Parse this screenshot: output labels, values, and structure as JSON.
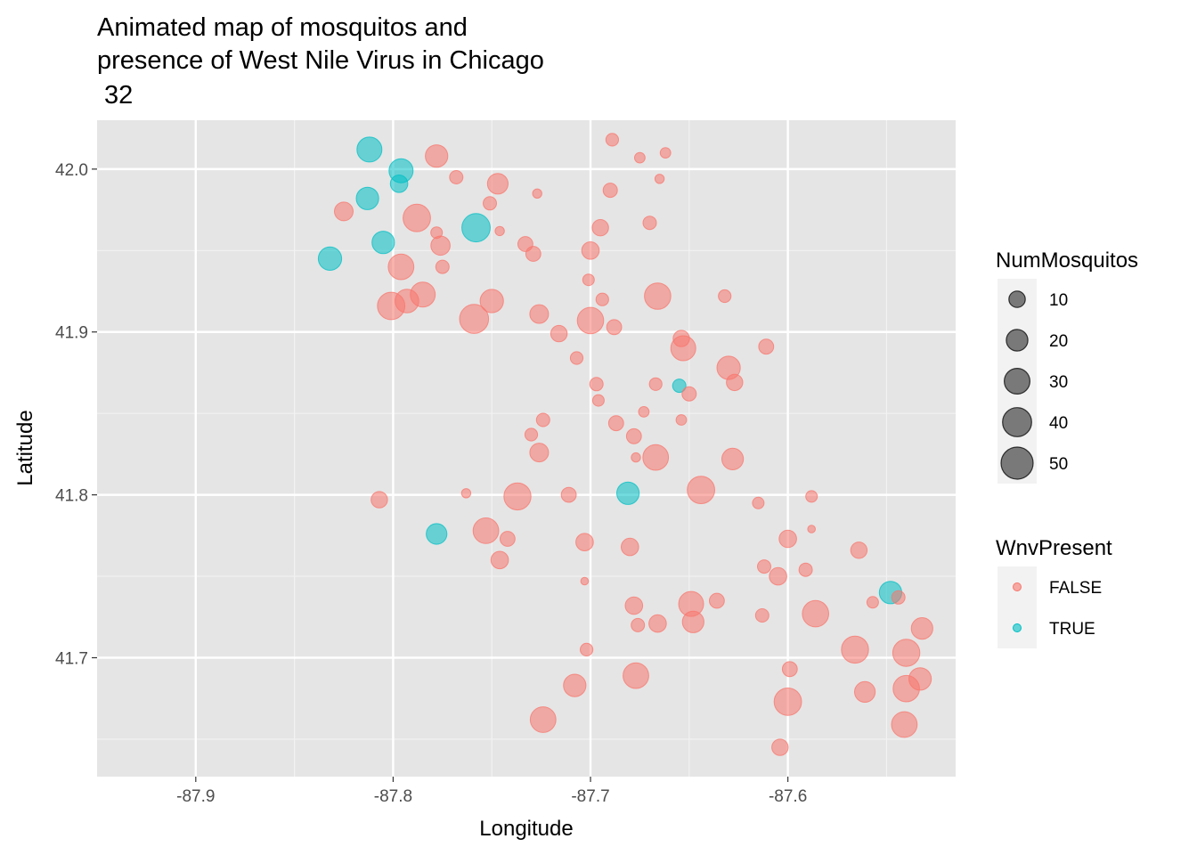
{
  "chart_data": {
    "type": "scatter",
    "title_lines": [
      "Animated map of mosquitos and",
      "presence of West Nile Virus in Chicago",
      " 32"
    ],
    "xlabel": "Longitude",
    "ylabel": "Latitude",
    "xlim": [
      -87.95,
      -87.515
    ],
    "ylim": [
      41.627,
      42.03
    ],
    "x_ticks": [
      -87.9,
      -87.8,
      -87.7,
      -87.6
    ],
    "x_tick_labels": [
      "-87.9",
      "-87.8",
      "-87.7",
      "-87.6"
    ],
    "y_ticks": [
      41.7,
      41.8,
      41.9,
      42.0
    ],
    "y_tick_labels": [
      "41.7",
      "41.8",
      "41.9",
      "42.0"
    ],
    "grid": true,
    "panel_background": "#e5e5e5",
    "size_legend": {
      "title": "NumMosquitos",
      "values": [
        10,
        20,
        30,
        40,
        50
      ],
      "labels": [
        "10",
        "20",
        "30",
        "40",
        "50"
      ],
      "color": "#000000"
    },
    "color_legend": {
      "title": "WnvPresent",
      "entries": [
        {
          "label": "FALSE",
          "color": "#f8766d"
        },
        {
          "label": "TRUE",
          "color": "#00bfc4"
        }
      ]
    },
    "points": [
      {
        "x": -87.812,
        "y": 42.012,
        "n": 28,
        "wnv": true
      },
      {
        "x": -87.796,
        "y": 41.999,
        "n": 26,
        "wnv": true
      },
      {
        "x": -87.797,
        "y": 41.991,
        "n": 12,
        "wnv": true
      },
      {
        "x": -87.813,
        "y": 41.982,
        "n": 22,
        "wnv": true
      },
      {
        "x": -87.825,
        "y": 41.974,
        "n": 14,
        "wnv": false
      },
      {
        "x": -87.832,
        "y": 41.945,
        "n": 24,
        "wnv": true
      },
      {
        "x": -87.805,
        "y": 41.955,
        "n": 22,
        "wnv": true
      },
      {
        "x": -87.796,
        "y": 41.94,
        "n": 30,
        "wnv": false
      },
      {
        "x": -87.788,
        "y": 41.97,
        "n": 35,
        "wnv": false
      },
      {
        "x": -87.778,
        "y": 42.008,
        "n": 22,
        "wnv": false
      },
      {
        "x": -87.776,
        "y": 41.953,
        "n": 15,
        "wnv": false
      },
      {
        "x": -87.775,
        "y": 41.94,
        "n": 6,
        "wnv": false
      },
      {
        "x": -87.778,
        "y": 41.961,
        "n": 4,
        "wnv": false
      },
      {
        "x": -87.768,
        "y": 41.995,
        "n": 6,
        "wnv": false
      },
      {
        "x": -87.801,
        "y": 41.916,
        "n": 35,
        "wnv": false
      },
      {
        "x": -87.793,
        "y": 41.919,
        "n": 25,
        "wnv": false
      },
      {
        "x": -87.785,
        "y": 41.923,
        "n": 28,
        "wnv": false
      },
      {
        "x": -87.759,
        "y": 41.908,
        "n": 40,
        "wnv": false
      },
      {
        "x": -87.758,
        "y": 41.964,
        "n": 38,
        "wnv": true
      },
      {
        "x": -87.75,
        "y": 41.919,
        "n": 24,
        "wnv": false
      },
      {
        "x": -87.747,
        "y": 41.991,
        "n": 18,
        "wnv": false
      },
      {
        "x": -87.751,
        "y": 41.979,
        "n": 6,
        "wnv": false
      },
      {
        "x": -87.746,
        "y": 41.962,
        "n": 2,
        "wnv": false
      },
      {
        "x": -87.733,
        "y": 41.954,
        "n": 8,
        "wnv": false
      },
      {
        "x": -87.729,
        "y": 41.948,
        "n": 8,
        "wnv": false
      },
      {
        "x": -87.727,
        "y": 41.985,
        "n": 2,
        "wnv": false
      },
      {
        "x": -87.726,
        "y": 41.911,
        "n": 14,
        "wnv": false
      },
      {
        "x": -87.716,
        "y": 41.899,
        "n": 10,
        "wnv": false
      },
      {
        "x": -87.7,
        "y": 41.907,
        "n": 32,
        "wnv": false
      },
      {
        "x": -87.707,
        "y": 41.884,
        "n": 5,
        "wnv": false
      },
      {
        "x": -87.7,
        "y": 41.95,
        "n": 12,
        "wnv": false
      },
      {
        "x": -87.701,
        "y": 41.932,
        "n": 4,
        "wnv": false
      },
      {
        "x": -87.694,
        "y": 41.92,
        "n": 5,
        "wnv": false
      },
      {
        "x": -87.695,
        "y": 41.964,
        "n": 10,
        "wnv": false
      },
      {
        "x": -87.69,
        "y": 41.987,
        "n": 7,
        "wnv": false
      },
      {
        "x": -87.689,
        "y": 42.018,
        "n": 5,
        "wnv": false
      },
      {
        "x": -87.688,
        "y": 41.903,
        "n": 8,
        "wnv": false
      },
      {
        "x": -87.675,
        "y": 42.007,
        "n": 3,
        "wnv": false
      },
      {
        "x": -87.665,
        "y": 41.994,
        "n": 2,
        "wnv": false
      },
      {
        "x": -87.662,
        "y": 42.01,
        "n": 3,
        "wnv": false
      },
      {
        "x": -87.67,
        "y": 41.967,
        "n": 6,
        "wnv": false
      },
      {
        "x": -87.666,
        "y": 41.922,
        "n": 32,
        "wnv": false
      },
      {
        "x": -87.697,
        "y": 41.868,
        "n": 6,
        "wnv": false
      },
      {
        "x": -87.696,
        "y": 41.858,
        "n": 4,
        "wnv": false
      },
      {
        "x": -87.687,
        "y": 41.844,
        "n": 8,
        "wnv": false
      },
      {
        "x": -87.678,
        "y": 41.836,
        "n": 8,
        "wnv": false
      },
      {
        "x": -87.677,
        "y": 41.823,
        "n": 2,
        "wnv": false
      },
      {
        "x": -87.667,
        "y": 41.823,
        "n": 30,
        "wnv": false
      },
      {
        "x": -87.673,
        "y": 41.851,
        "n": 3,
        "wnv": false
      },
      {
        "x": -87.667,
        "y": 41.868,
        "n": 5,
        "wnv": false
      },
      {
        "x": -87.655,
        "y": 41.867,
        "n": 6,
        "wnv": true
      },
      {
        "x": -87.65,
        "y": 41.862,
        "n": 7,
        "wnv": false
      },
      {
        "x": -87.654,
        "y": 41.896,
        "n": 10,
        "wnv": false
      },
      {
        "x": -87.653,
        "y": 41.89,
        "n": 28,
        "wnv": false
      },
      {
        "x": -87.654,
        "y": 41.846,
        "n": 3,
        "wnv": false
      },
      {
        "x": -87.63,
        "y": 41.878,
        "n": 24,
        "wnv": false
      },
      {
        "x": -87.627,
        "y": 41.869,
        "n": 10,
        "wnv": false
      },
      {
        "x": -87.632,
        "y": 41.922,
        "n": 5,
        "wnv": false
      },
      {
        "x": -87.611,
        "y": 41.891,
        "n": 8,
        "wnv": false
      },
      {
        "x": -87.628,
        "y": 41.822,
        "n": 20,
        "wnv": false
      },
      {
        "x": -87.644,
        "y": 41.803,
        "n": 35,
        "wnv": false
      },
      {
        "x": -87.615,
        "y": 41.795,
        "n": 4,
        "wnv": false
      },
      {
        "x": -87.73,
        "y": 41.837,
        "n": 5,
        "wnv": false
      },
      {
        "x": -87.726,
        "y": 41.826,
        "n": 14,
        "wnv": false
      },
      {
        "x": -87.724,
        "y": 41.846,
        "n": 6,
        "wnv": false
      },
      {
        "x": -87.737,
        "y": 41.799,
        "n": 34,
        "wnv": false
      },
      {
        "x": -87.711,
        "y": 41.8,
        "n": 8,
        "wnv": false
      },
      {
        "x": -87.753,
        "y": 41.778,
        "n": 30,
        "wnv": false
      },
      {
        "x": -87.742,
        "y": 41.773,
        "n": 8,
        "wnv": false
      },
      {
        "x": -87.746,
        "y": 41.76,
        "n": 12,
        "wnv": false
      },
      {
        "x": -87.807,
        "y": 41.797,
        "n": 10,
        "wnv": false
      },
      {
        "x": -87.778,
        "y": 41.776,
        "n": 18,
        "wnv": true
      },
      {
        "x": -87.763,
        "y": 41.801,
        "n": 2,
        "wnv": false
      },
      {
        "x": -87.703,
        "y": 41.771,
        "n": 12,
        "wnv": false
      },
      {
        "x": -87.703,
        "y": 41.747,
        "n": 1,
        "wnv": false
      },
      {
        "x": -87.681,
        "y": 41.801,
        "n": 22,
        "wnv": true
      },
      {
        "x": -87.68,
        "y": 41.768,
        "n": 12,
        "wnv": false
      },
      {
        "x": -87.678,
        "y": 41.732,
        "n": 12,
        "wnv": false
      },
      {
        "x": -87.676,
        "y": 41.72,
        "n": 6,
        "wnv": false
      },
      {
        "x": -87.666,
        "y": 41.721,
        "n": 12,
        "wnv": false
      },
      {
        "x": -87.649,
        "y": 41.733,
        "n": 28,
        "wnv": false
      },
      {
        "x": -87.648,
        "y": 41.722,
        "n": 20,
        "wnv": false
      },
      {
        "x": -87.636,
        "y": 41.735,
        "n": 8,
        "wnv": false
      },
      {
        "x": -87.702,
        "y": 41.705,
        "n": 5,
        "wnv": false
      },
      {
        "x": -87.708,
        "y": 41.683,
        "n": 22,
        "wnv": false
      },
      {
        "x": -87.677,
        "y": 41.689,
        "n": 30,
        "wnv": false
      },
      {
        "x": -87.724,
        "y": 41.662,
        "n": 30,
        "wnv": false
      },
      {
        "x": -87.6,
        "y": 41.773,
        "n": 12,
        "wnv": false
      },
      {
        "x": -87.612,
        "y": 41.756,
        "n": 6,
        "wnv": false
      },
      {
        "x": -87.605,
        "y": 41.75,
        "n": 12,
        "wnv": false
      },
      {
        "x": -87.613,
        "y": 41.726,
        "n": 6,
        "wnv": false
      },
      {
        "x": -87.591,
        "y": 41.754,
        "n": 6,
        "wnv": false
      },
      {
        "x": -87.588,
        "y": 41.799,
        "n": 4,
        "wnv": false
      },
      {
        "x": -87.588,
        "y": 41.779,
        "n": 1,
        "wnv": false
      },
      {
        "x": -87.586,
        "y": 41.727,
        "n": 32,
        "wnv": false
      },
      {
        "x": -87.599,
        "y": 41.693,
        "n": 8,
        "wnv": false
      },
      {
        "x": -87.6,
        "y": 41.673,
        "n": 35,
        "wnv": false
      },
      {
        "x": -87.604,
        "y": 41.645,
        "n": 10,
        "wnv": false
      },
      {
        "x": -87.566,
        "y": 41.705,
        "n": 34,
        "wnv": false
      },
      {
        "x": -87.561,
        "y": 41.679,
        "n": 18,
        "wnv": false
      },
      {
        "x": -87.564,
        "y": 41.766,
        "n": 10,
        "wnv": false
      },
      {
        "x": -87.557,
        "y": 41.734,
        "n": 4,
        "wnv": false
      },
      {
        "x": -87.548,
        "y": 41.74,
        "n": 22,
        "wnv": true
      },
      {
        "x": -87.544,
        "y": 41.737,
        "n": 6,
        "wnv": false
      },
      {
        "x": -87.54,
        "y": 41.703,
        "n": 34,
        "wnv": false
      },
      {
        "x": -87.54,
        "y": 41.681,
        "n": 32,
        "wnv": false
      },
      {
        "x": -87.532,
        "y": 41.718,
        "n": 20,
        "wnv": false
      },
      {
        "x": -87.533,
        "y": 41.687,
        "n": 22,
        "wnv": false
      },
      {
        "x": -87.541,
        "y": 41.659,
        "n": 30,
        "wnv": false
      }
    ]
  }
}
